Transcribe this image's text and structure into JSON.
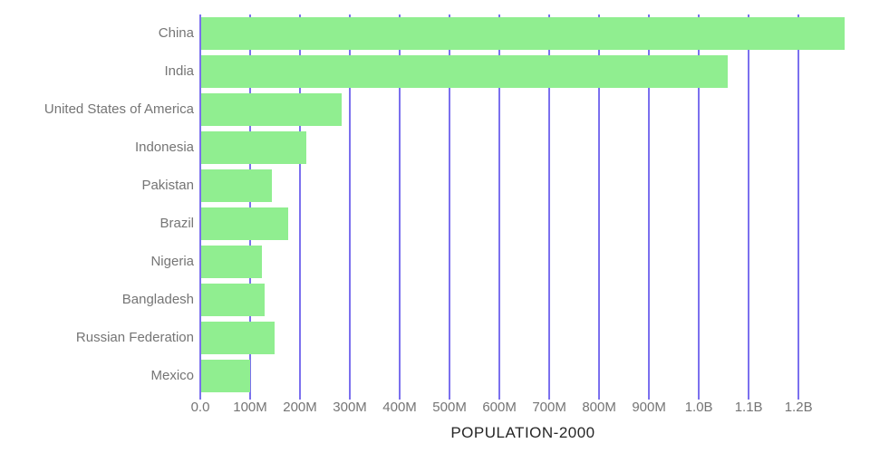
{
  "chart_data": {
    "type": "bar",
    "orientation": "horizontal",
    "title": "POPULATION-2000",
    "categories": [
      "China",
      "India",
      "United States of America",
      "Indonesia",
      "Pakistan",
      "Brazil",
      "Nigeria",
      "Bangladesh",
      "Russian Federation",
      "Mexico"
    ],
    "values_millions": [
      1290.6,
      1056.6,
      281.7,
      211.5,
      142.3,
      174.8,
      122.3,
      127.7,
      146.6,
      98.9
    ],
    "x_axis": {
      "label": "POPULATION-2000",
      "tick_labels": [
        "0.0",
        "100M",
        "200M",
        "300M",
        "400M",
        "500M",
        "600M",
        "700M",
        "800M",
        "900M",
        "1.0B",
        "1.1B",
        "1.2B"
      ],
      "tick_values_millions": [
        0,
        100,
        200,
        300,
        400,
        500,
        600,
        700,
        800,
        900,
        1000,
        1100,
        1200
      ],
      "range_millions": [
        0,
        1290.6
      ]
    },
    "y_axis": {
      "label": ""
    },
    "legend": "none",
    "grid": "vertical",
    "colors": {
      "bar": "#90ee90",
      "grid": "#7b70ee",
      "axis_line": "#7b70ee",
      "category_text": "#757575",
      "tick_text": "#757575",
      "title_text": "#262626",
      "background": "#ffffff"
    }
  }
}
